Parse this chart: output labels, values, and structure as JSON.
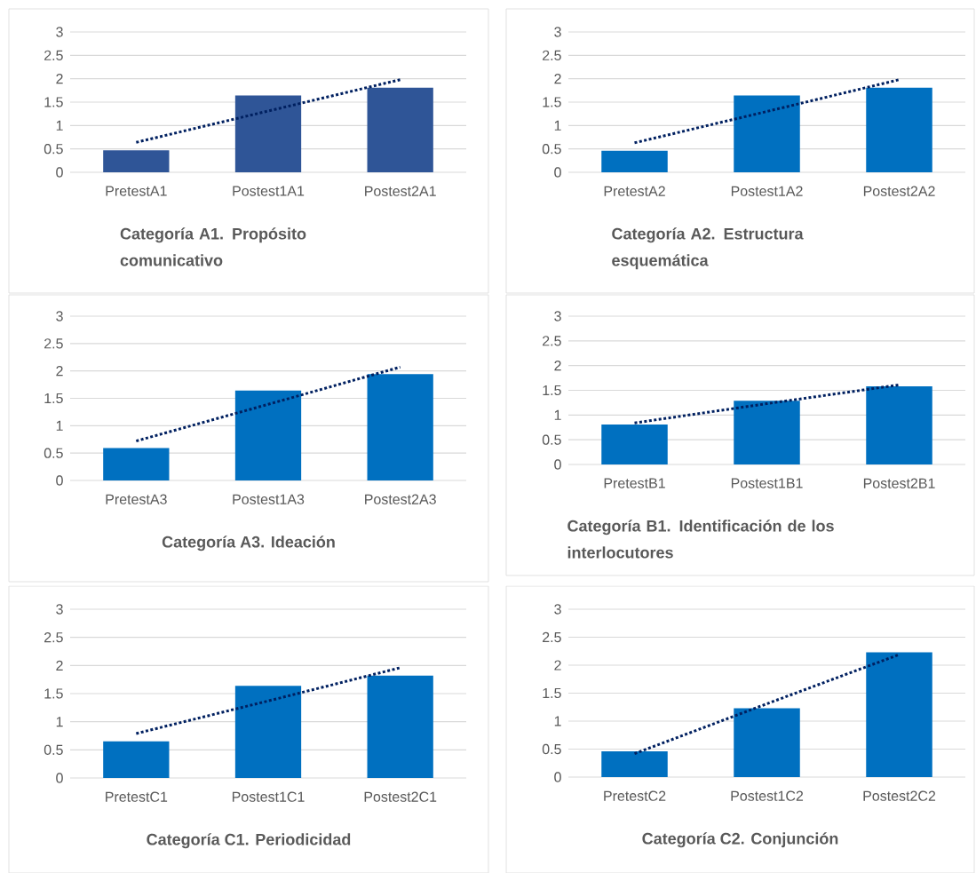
{
  "chart_data": [
    {
      "type": "bar",
      "title": "Categoría A1. Propósito comunicativo",
      "categories": [
        "PretestA1",
        "Postest1A1",
        "Postest2A1"
      ],
      "series": [
        {
          "color": "#2f5597",
          "values": [
            0.47,
            1.64,
            1.81
          ]
        },
        {
          "type": "line",
          "color": "#002060",
          "line_style": "dotted",
          "values": [
            0.64,
            1.31,
            1.98
          ]
        }
      ],
      "ylim": [
        0,
        3
      ],
      "yticks": [
        0,
        0.5,
        1,
        1.5,
        2,
        2.5,
        3
      ],
      "grid": "y"
    },
    {
      "type": "bar",
      "title": "Categoría A2. Estructura esquemática",
      "categories": [
        "PretestA2",
        "Postest1A2",
        "Postest2A2"
      ],
      "series": [
        {
          "color": "#0070c0",
          "values": [
            0.46,
            1.64,
            1.81
          ]
        },
        {
          "type": "line",
          "color": "#002060",
          "line_style": "dotted",
          "values": [
            0.63,
            1.3,
            1.98
          ]
        }
      ],
      "ylim": [
        0,
        3
      ],
      "yticks": [
        0,
        0.5,
        1,
        1.5,
        2,
        2.5,
        3
      ],
      "grid": "y"
    },
    {
      "type": "bar",
      "title": "Categoría A3. Ideación",
      "categories": [
        "PretestA3",
        "Postest1A3",
        "Postest2A3"
      ],
      "series": [
        {
          "color": "#0070c0",
          "values": [
            0.59,
            1.64,
            1.94
          ]
        },
        {
          "type": "line",
          "color": "#002060",
          "line_style": "dotted",
          "values": [
            0.72,
            1.39,
            2.07
          ]
        }
      ],
      "ylim": [
        0,
        3
      ],
      "yticks": [
        0,
        0.5,
        1,
        1.5,
        2,
        2.5,
        3
      ],
      "grid": "y"
    },
    {
      "type": "bar",
      "title": "Categoría B1. Identificación de los interlocutores",
      "categories": [
        "PretestB1",
        "Postest1B1",
        "Postest2B1"
      ],
      "series": [
        {
          "color": "#0070c0",
          "values": [
            0.81,
            1.29,
            1.58
          ]
        },
        {
          "type": "line",
          "color": "#002060",
          "line_style": "dotted",
          "values": [
            0.84,
            1.23,
            1.61
          ]
        }
      ],
      "ylim": [
        0,
        3
      ],
      "yticks": [
        0,
        0.5,
        1,
        1.5,
        2,
        2.5,
        3
      ],
      "grid": "y"
    },
    {
      "type": "bar",
      "title": "Categoría C1. Periodicidad",
      "categories": [
        "PretestC1",
        "Postest1C1",
        "Postest2C1"
      ],
      "series": [
        {
          "color": "#0070c0",
          "values": [
            0.65,
            1.64,
            1.82
          ]
        },
        {
          "type": "line",
          "color": "#002060",
          "line_style": "dotted",
          "values": [
            0.79,
            1.37,
            1.96
          ]
        }
      ],
      "ylim": [
        0,
        3
      ],
      "yticks": [
        0,
        0.5,
        1,
        1.5,
        2,
        2.5,
        3
      ],
      "grid": "y"
    },
    {
      "type": "bar",
      "title": "Categoría C2. Conjunción",
      "categories": [
        "PretestC2",
        "Postest1C2",
        "Postest2C2"
      ],
      "series": [
        {
          "color": "#0070c0",
          "values": [
            0.46,
            1.23,
            2.23
          ]
        },
        {
          "type": "line",
          "color": "#002060",
          "line_style": "dotted",
          "values": [
            0.42,
            1.31,
            2.19
          ]
        }
      ],
      "ylim": [
        0,
        3
      ],
      "yticks": [
        0,
        0.5,
        1,
        1.5,
        2,
        2.5,
        3
      ],
      "grid": "y"
    }
  ]
}
